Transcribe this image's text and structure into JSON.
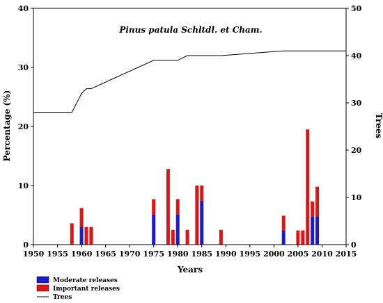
{
  "chart_data": {
    "type": "bar+line",
    "title": "Pinus patula Schltdl. et Cham.",
    "xlabel": "Years",
    "ylabel_left": "Percentage (%)",
    "ylabel_right": "Trees",
    "xlim": [
      1950,
      2015
    ],
    "x_ticks": [
      1950,
      1955,
      1960,
      1965,
      1970,
      1975,
      1980,
      1985,
      1990,
      1995,
      2000,
      2005,
      2010,
      2015
    ],
    "ylim_left": [
      0,
      40
    ],
    "y_ticks_left": [
      0,
      10,
      20,
      30,
      40
    ],
    "ylim_right": [
      0,
      50
    ],
    "y_ticks_right": [
      0,
      10,
      20,
      30,
      40,
      50
    ],
    "stacked": true,
    "bar_years": [
      1958,
      1960,
      1961,
      1962,
      1975,
      1978,
      1979,
      1980,
      1982,
      1984,
      1985,
      1989,
      2002,
      2005,
      2006,
      2007,
      2008,
      2009
    ],
    "series": [
      {
        "name": "Moderate releases",
        "color": "#1a1acc",
        "axis": "left",
        "values": [
          0,
          3.0,
          0,
          0,
          5.1,
          0,
          0,
          5.1,
          0,
          0,
          7.4,
          0,
          2.4,
          0,
          0,
          0,
          4.8,
          4.8
        ]
      },
      {
        "name": "Important releases",
        "color": "#e01414",
        "axis": "left",
        "values": [
          3.6,
          3.2,
          3.0,
          3.0,
          2.6,
          12.8,
          2.5,
          2.6,
          2.5,
          10.0,
          2.6,
          2.5,
          2.5,
          2.4,
          2.4,
          19.5,
          2.5,
          5.0
        ]
      },
      {
        "name": "Trees",
        "color": "#000000",
        "axis": "right",
        "type": "line",
        "points": [
          [
            1950,
            28
          ],
          [
            1958,
            28
          ],
          [
            1960,
            32
          ],
          [
            1961,
            33
          ],
          [
            1962,
            33
          ],
          [
            1975,
            39
          ],
          [
            1980,
            39
          ],
          [
            1982,
            40
          ],
          [
            1989,
            40
          ],
          [
            2002,
            41
          ],
          [
            2015,
            41
          ]
        ]
      }
    ],
    "legend_position": "bottom-left"
  }
}
